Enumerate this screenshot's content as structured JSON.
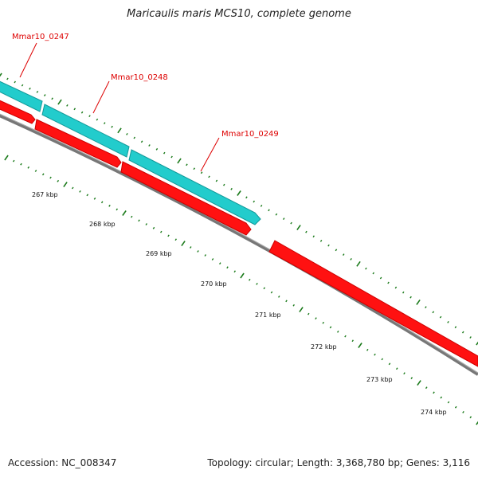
{
  "title": "Maricaulis maris MCS10, complete genome",
  "footer": {
    "accession": "Accession: NC_008347",
    "summary": "Topology: circular; Length: 3,368,780 bp; Genes: 3,116"
  },
  "colors": {
    "forward_gene": "#22cccc",
    "reverse_gene": "#ff1111",
    "backbone": "#888888",
    "tick": "#1a7a1a",
    "label": "#dd0000"
  },
  "gene_labels": [
    "Mmar10_0247",
    "Mmar10_0248",
    "Mmar10_0249"
  ],
  "scale_labels": [
    "267 kbp",
    "268 kbp",
    "269 kbp",
    "270 kbp",
    "271 kbp",
    "272 kbp",
    "273 kbp",
    "274 kbp"
  ]
}
